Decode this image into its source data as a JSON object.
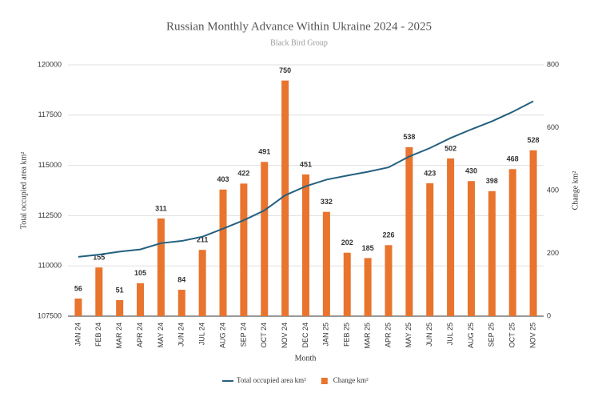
{
  "chart_data": {
    "type": "combo",
    "title": "Russian Monthly Advance Within Ukraine 2024 - 2025",
    "subtitle": "Black Bird Group",
    "x_label": "Month",
    "y_label": "Total occupied area km²",
    "y2_label": "Change km²",
    "categories": [
      "JAN 24",
      "FEB 24",
      "MAR 24",
      "APR 24",
      "MAY 24",
      "JUN 24",
      "JUL 24",
      "AUG 24",
      "SEP 24",
      "OCT 24",
      "NOV 24",
      "DEC 24",
      "JAN 25",
      "FEB 25",
      "MAR 25",
      "APR 25",
      "MAY 25",
      "JUN 25",
      "JUL 25",
      "AUG 25",
      "SEP 25",
      "OCT 25",
      "NOV 25"
    ],
    "series": [
      {
        "name": "Total occupied area km²",
        "type": "line",
        "axis": "y",
        "color": "#24607f",
        "values": [
          110450,
          110560,
          110710,
          110820,
          111130,
          111240,
          111450,
          111850,
          112270,
          112760,
          113510,
          113960,
          114290,
          114490,
          114680,
          114900,
          115440,
          115860,
          116360,
          116790,
          117190,
          117660,
          118190
        ]
      },
      {
        "name": "Change km²",
        "type": "bar",
        "axis": "y2",
        "color": "#e8742e",
        "values": [
          56,
          155,
          51,
          105,
          311,
          84,
          211,
          403,
          422,
          491,
          750,
          451,
          332,
          202,
          185,
          226,
          538,
          423,
          502,
          430,
          398,
          468,
          528
        ]
      }
    ],
    "ylim": [
      107500,
      120000
    ],
    "yticks": [
      107500,
      110000,
      112500,
      115000,
      117500,
      120000
    ],
    "y2lim": [
      0,
      800
    ],
    "y2ticks": [
      0,
      200,
      400,
      600,
      800
    ],
    "legend": "bottom"
  }
}
